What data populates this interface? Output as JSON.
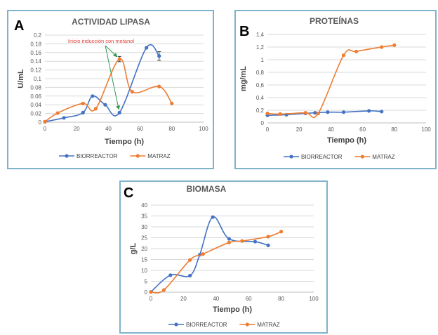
{
  "colors": {
    "biorreactor": "#4472c4",
    "matraz": "#ed7d31",
    "grid": "#d9d9d9",
    "annotation_text": "#e0443c",
    "annotation_arrow": "#2e9b4f"
  },
  "chart_data": [
    {
      "panel": "A",
      "type": "line",
      "title": "ACTIVIDAD LIPASA",
      "xlabel": "Tiempo (h)",
      "ylabel": "U/mL",
      "xlim": [
        0,
        100
      ],
      "ylim": [
        0,
        0.2
      ],
      "xticks": [
        "0",
        "20",
        "40",
        "60",
        "80",
        "100"
      ],
      "yticks": [
        "0",
        "0.02",
        "0.04",
        "0.06",
        "0.08",
        "0.1",
        "0.12",
        "0.14",
        "0.16",
        "0.18",
        "0.2"
      ],
      "grid": true,
      "legend_position": "bottom",
      "annotation": "Inicio inducción con metanol",
      "annotation_targets": [
        {
          "series": "MATRAZ",
          "x": 47
        },
        {
          "series": "BIORREACTOR",
          "x": 47
        }
      ],
      "series": [
        {
          "name": "BIORREACTOR",
          "color_key": "biorreactor",
          "points": [
            [
              0,
              0.001
            ],
            [
              12,
              0.01
            ],
            [
              24,
              0.022
            ],
            [
              30,
              0.06
            ],
            [
              38,
              0.04
            ],
            [
              47,
              0.022
            ],
            [
              64,
              0.171
            ],
            [
              72,
              0.152
            ]
          ],
          "error_bars": [
            {
              "x": 72,
              "err": 0.01
            }
          ]
        },
        {
          "name": "MATRAZ",
          "color_key": "matraz",
          "points": [
            [
              0,
              0.001
            ],
            [
              8,
              0.021
            ],
            [
              24,
              0.043
            ],
            [
              32,
              0.031
            ],
            [
              47,
              0.145
            ],
            [
              55,
              0.07
            ],
            [
              72,
              0.082
            ],
            [
              80,
              0.043
            ]
          ],
          "error_bars": [
            {
              "x": 47,
              "err": 0.006
            }
          ]
        }
      ]
    },
    {
      "panel": "B",
      "type": "line",
      "title": "PROTEÍNAS",
      "xlabel": "Tiempo (h)",
      "ylabel": "mg/mL",
      "xlim": [
        0,
        100
      ],
      "ylim": [
        0,
        1.4
      ],
      "xticks": [
        "0",
        "20",
        "40",
        "60",
        "80",
        "100"
      ],
      "yticks": [
        "0",
        "0,2",
        "0,4",
        "0,6",
        "0,8",
        "1",
        "1,2",
        "1,4"
      ],
      "grid": true,
      "legend_position": "bottom",
      "series": [
        {
          "name": "BIORREACTOR",
          "color_key": "biorreactor",
          "points": [
            [
              0,
              0.12
            ],
            [
              12,
              0.13
            ],
            [
              24,
              0.15
            ],
            [
              30,
              0.16
            ],
            [
              38,
              0.17
            ],
            [
              48,
              0.17
            ],
            [
              64,
              0.19
            ],
            [
              72,
              0.18
            ]
          ]
        },
        {
          "name": "MATRAZ",
          "color_key": "matraz",
          "points": [
            [
              0,
              0.15
            ],
            [
              8,
              0.14
            ],
            [
              24,
              0.16
            ],
            [
              32,
              0.15
            ],
            [
              48,
              1.07
            ],
            [
              56,
              1.13
            ],
            [
              72,
              1.2
            ],
            [
              80,
              1.23
            ]
          ]
        }
      ]
    },
    {
      "panel": "C",
      "type": "line",
      "title": "BIOMASA",
      "xlabel": "Tiempo (h)",
      "ylabel": "g/L",
      "xlim": [
        0,
        100
      ],
      "ylim": [
        0,
        40
      ],
      "xticks": [
        "0",
        "20",
        "40",
        "60",
        "80",
        "100"
      ],
      "yticks": [
        "0",
        "5",
        "10",
        "15",
        "20",
        "25",
        "30",
        "35",
        "40"
      ],
      "grid": true,
      "legend_position": "bottom",
      "series": [
        {
          "name": "BIORREACTOR",
          "color_key": "biorreactor",
          "points": [
            [
              0,
              0.1
            ],
            [
              12,
              7.8
            ],
            [
              24,
              7.6
            ],
            [
              30,
              17.2
            ],
            [
              38,
              34.5
            ],
            [
              48,
              24.5
            ],
            [
              64,
              23.2
            ],
            [
              72,
              21.5
            ]
          ]
        },
        {
          "name": "MATRAZ",
          "color_key": "matraz",
          "points": [
            [
              0,
              0.1
            ],
            [
              8,
              1
            ],
            [
              24,
              14.8
            ],
            [
              32,
              17.5
            ],
            [
              48,
              22.8
            ],
            [
              56,
              23.5
            ],
            [
              72,
              25.5
            ],
            [
              80,
              27.8
            ]
          ]
        }
      ]
    }
  ]
}
